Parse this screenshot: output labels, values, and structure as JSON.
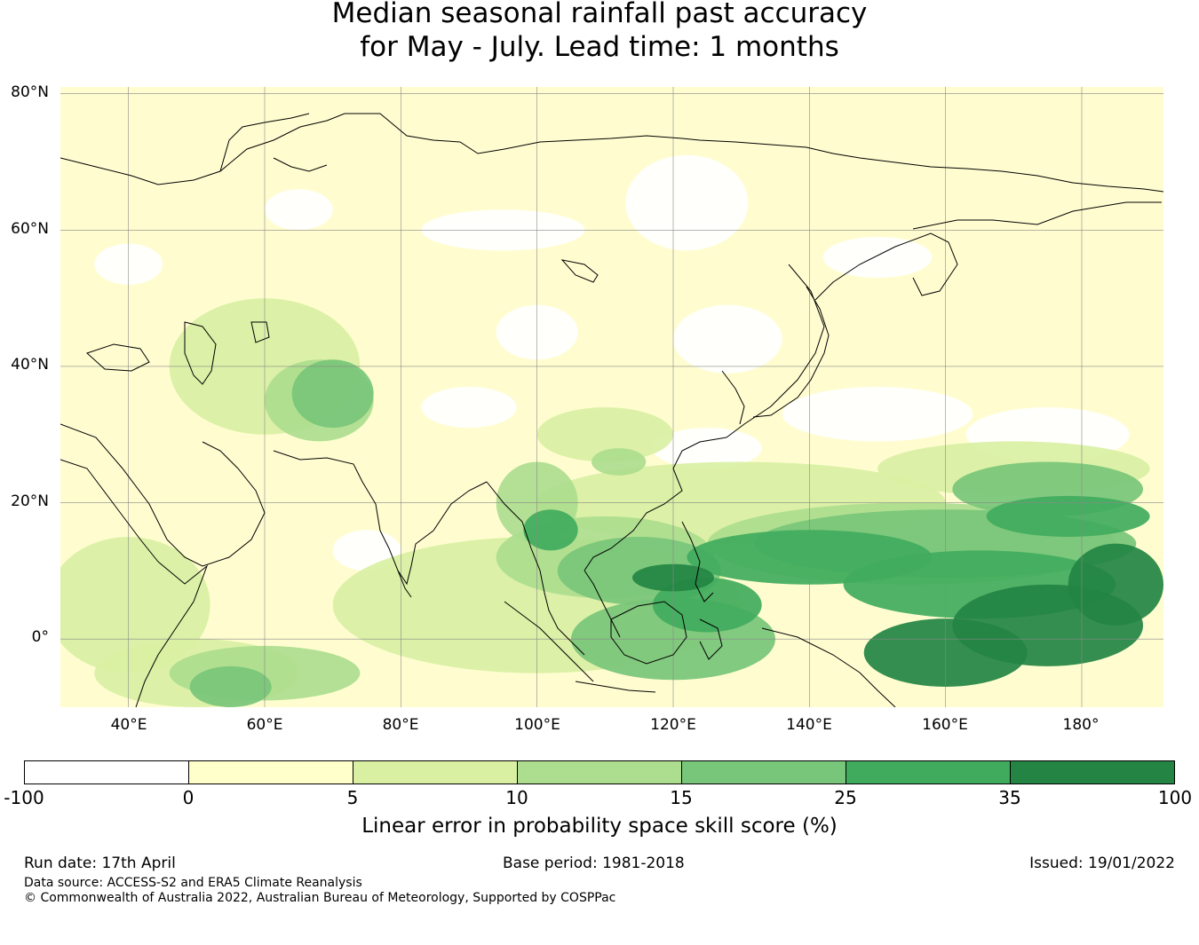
{
  "title": {
    "line1": "Median seasonal rainfall past accuracy",
    "line2": "for May - July. Lead time: 1 months"
  },
  "map": {
    "lat_labels": [
      "80°N",
      "60°N",
      "40°N",
      "20°N",
      "0°"
    ],
    "lat_values": [
      80,
      60,
      40,
      20,
      0
    ],
    "lon_labels": [
      "40°E",
      "60°E",
      "80°E",
      "100°E",
      "120°E",
      "140°E",
      "160°E",
      "180°"
    ],
    "lon_values": [
      40,
      60,
      80,
      100,
      120,
      140,
      160,
      180
    ],
    "extent": {
      "lon_min": 30,
      "lon_max": 192,
      "lat_min": -10,
      "lat_max": 81
    },
    "category_colors": [
      "#ffffff",
      "#ffffcc",
      "#d9f0a3",
      "#addd8e",
      "#78c679",
      "#41ab5d",
      "#238443"
    ]
  },
  "colorbar": {
    "ticks": [
      "-100",
      "0",
      "5",
      "10",
      "15",
      "25",
      "35",
      "100"
    ],
    "colors": [
      "#ffffff",
      "#ffffcc",
      "#d9f0a3",
      "#addd8e",
      "#78c679",
      "#41ab5d",
      "#238443"
    ],
    "label": "Linear error in probability space skill score (%)"
  },
  "footer": {
    "run_date": "Run date: 17th April",
    "base_period": "Base period: 1981-2018",
    "issued": "Issued: 19/01/2022",
    "data_source": "Data source: ACCESS-S2 and ERA5 Climate Reanalysis",
    "copyright": "© Commonwealth of Australia 2022, Australian Bureau of Meteorology, Supported by COSPPac"
  }
}
